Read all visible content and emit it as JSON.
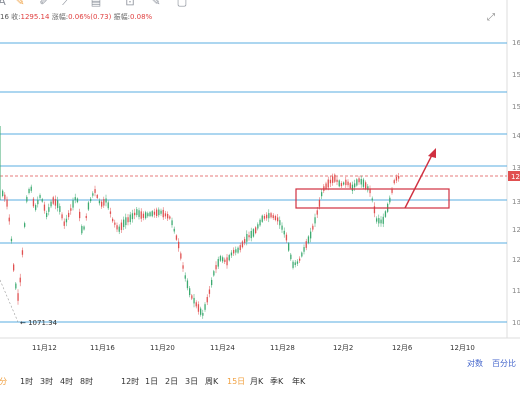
{
  "toolbar": {
    "icons": [
      "label-icon",
      "brush-icon",
      "pen-icon",
      "ruler-icon",
      "lock-icon",
      "edit-icon"
    ]
  },
  "info": {
    "prefix": "16",
    "close_label": "收:",
    "close_value": "1295.14",
    "change_label": "涨幅:",
    "change_value": "0.06%(0.73)",
    "amp_label": "振幅:",
    "amp_value": "0.08%"
  },
  "chart": {
    "low_annotation": "1071.34",
    "x_labels": [
      "11月12",
      "11月16",
      "11月20",
      "11月24",
      "11月28",
      "12月2",
      "12月6",
      "12月10"
    ],
    "right_labels": [
      "16",
      "15",
      "15",
      "14",
      "13",
      "13",
      "12",
      "12",
      "11",
      "10"
    ],
    "current_price_tag": "12"
  },
  "scale": {
    "log_label": "对数",
    "percent_label": "百分比"
  },
  "timeframes": [
    "5分",
    "15分",
    "30分",
    "1时",
    "3时",
    "4时",
    "8时",
    "12时",
    "1日",
    "2日",
    "3日",
    "周K",
    "15日",
    "月K",
    "季K",
    "年K"
  ]
}
